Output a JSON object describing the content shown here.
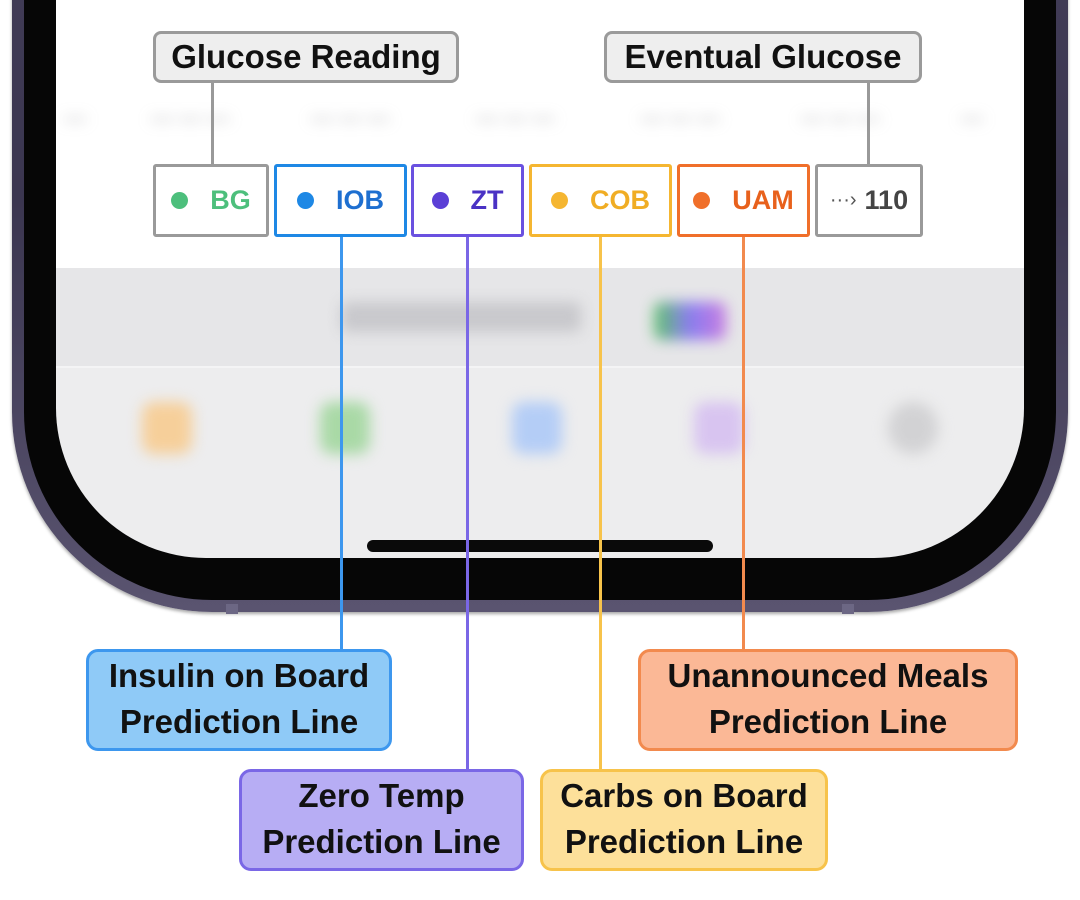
{
  "labels": {
    "glucose_reading": "Glucose Reading",
    "eventual_glucose": "Eventual Glucose"
  },
  "indicators": {
    "bg": "BG",
    "iob": "IOB",
    "zt": "ZT",
    "cob": "COB",
    "uam": "UAM",
    "eventual_value": "110"
  },
  "callouts": {
    "iob": [
      "Insulin on Board",
      "Prediction Line"
    ],
    "zt": [
      "Zero Temp",
      "Prediction Line"
    ],
    "cob": [
      "Carbs on Board",
      "Prediction Line"
    ],
    "uam": [
      "Unannounced Meals",
      "Prediction Line"
    ]
  },
  "colors": {
    "bg": "#4dbf7c",
    "iob": "#1e88e5",
    "zt": "#5b3fd6",
    "cob": "#f5b631",
    "uam": "#f06f2a",
    "eventual": "#444444"
  },
  "icons": {
    "eventual_arrow": "dotted-arrow-icon"
  }
}
